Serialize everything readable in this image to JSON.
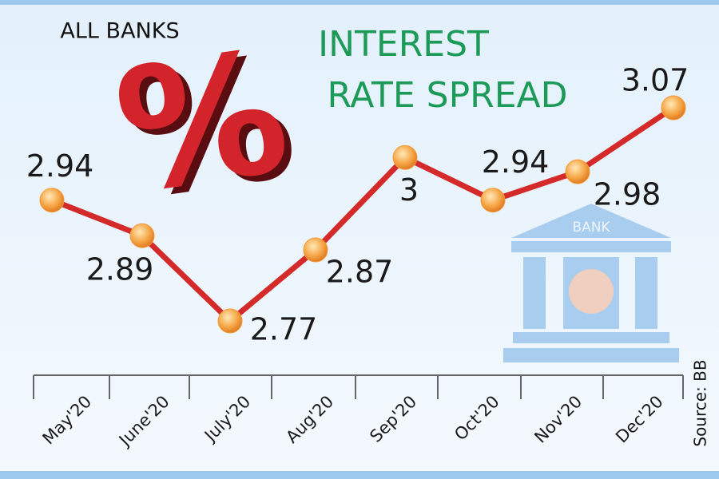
{
  "chart_data": {
    "type": "line",
    "kicker": "ALL BANKS",
    "symbol": "%",
    "title_line1": "INTEREST",
    "title_line2": "RATE SPREAD",
    "icon_label": "BANK",
    "source": "Source: BB",
    "categories": [
      "May'20",
      "June'20",
      "July'20",
      "Aug'20",
      "Sep'20",
      "Oct'20",
      "Nov'20",
      "Dec'20"
    ],
    "values": [
      2.94,
      2.89,
      2.77,
      2.87,
      3,
      2.94,
      2.98,
      3.07
    ],
    "color": "#d42a2a",
    "marker_color": "#f39a3c"
  }
}
